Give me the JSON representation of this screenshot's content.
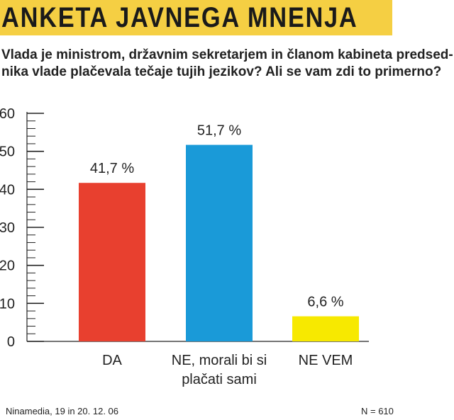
{
  "header": {
    "title": "ANKETA JAVNEGA MNENJA",
    "question_lines": [
      "Vlada je ministrom, državnim sekretarjem in članom kabineta predsed-",
      "nika vlade plačevala tečaje tujih jezikov? Ali se vam zdi to primerno?"
    ]
  },
  "colors": {
    "title_band": "#f5cf43",
    "da": "#e8402f",
    "ne": "#1a9ad8",
    "ne_vem": "#f7e900"
  },
  "chart_data": {
    "type": "bar",
    "title": "",
    "xlabel": "",
    "ylabel": "",
    "ylim": [
      0,
      60
    ],
    "y_ticks": [
      0,
      10,
      20,
      30,
      40,
      50,
      60
    ],
    "grid": false,
    "categories": [
      [
        "DA"
      ],
      [
        "NE, morali bi si",
        "plačati sami"
      ],
      [
        "NE VEM"
      ]
    ],
    "values": [
      41.7,
      51.7,
      6.6
    ],
    "value_labels": [
      "41,7 %",
      "51,7 %",
      "6,6 %"
    ],
    "bar_colors": [
      "#e8402f",
      "#1a9ad8",
      "#f7e900"
    ]
  },
  "footer": {
    "source": "Ninamedia, 19 in 20. 12. 06",
    "sample": "N = 610"
  }
}
